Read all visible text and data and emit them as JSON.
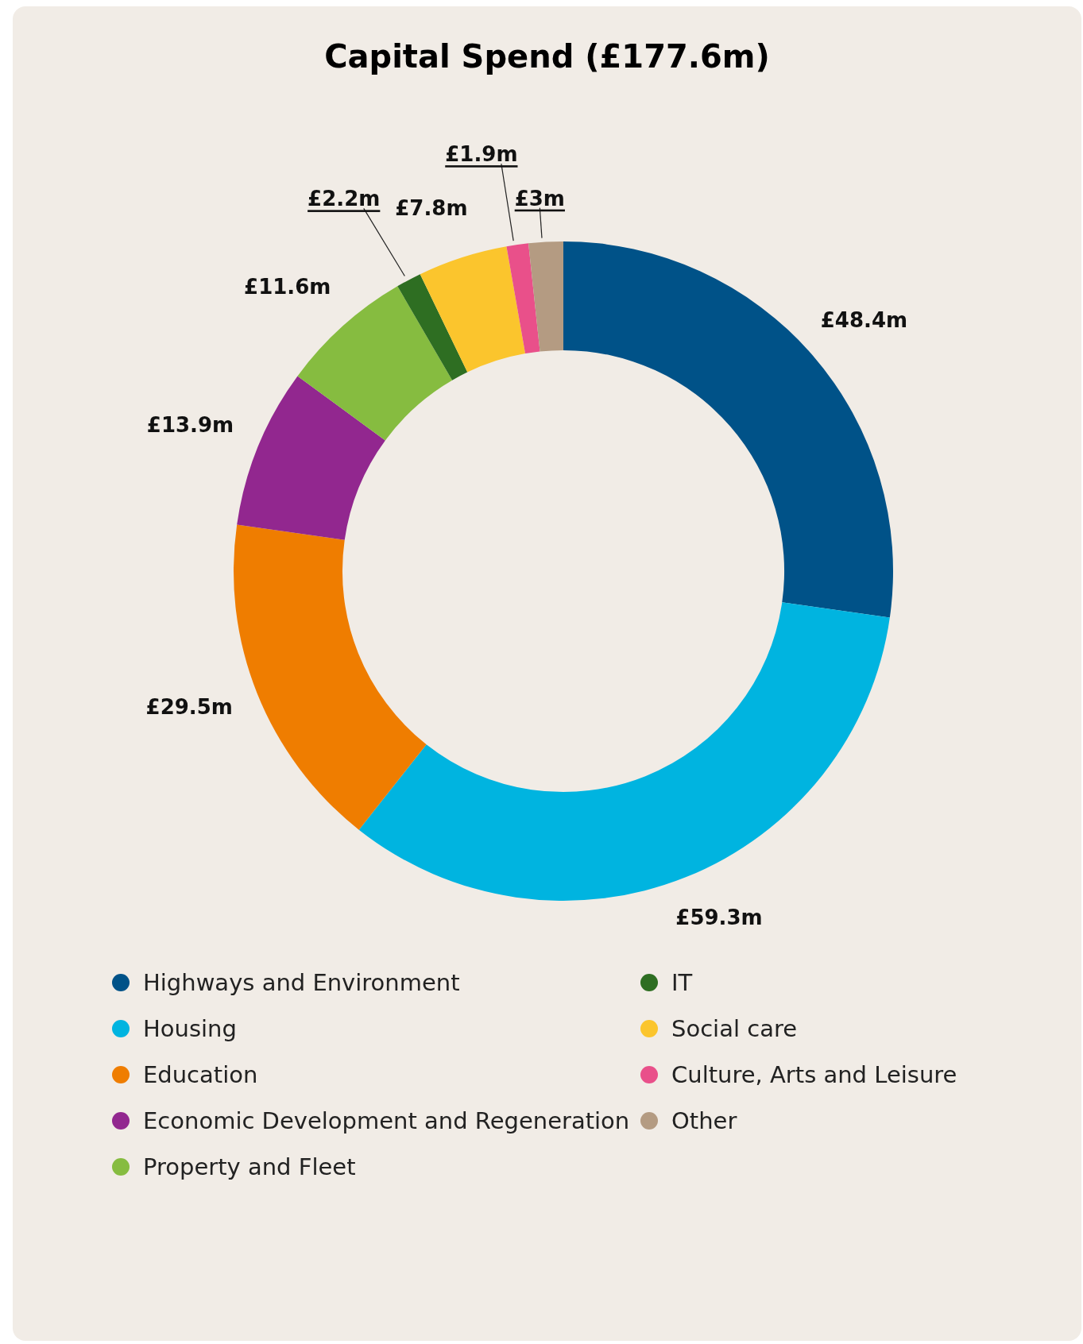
{
  "chart_data": {
    "type": "donut",
    "title": "Capital Spend (£177.6m)",
    "categories": [
      "Highways and Environment",
      "Housing",
      "Education",
      "Economic Development and Regeneration",
      "Property and Fleet",
      "IT",
      "Social care",
      "Culture, Arts and Leisure",
      "Other"
    ],
    "values": [
      48.4,
      59.3,
      29.5,
      13.9,
      11.6,
      2.2,
      7.8,
      1.9,
      3
    ],
    "colors": [
      "#005288",
      "#00b4e0",
      "#ef7d00",
      "#92278f",
      "#86bc40",
      "#2e6e22",
      "#fbc52d",
      "#e9508a",
      "#b49b82"
    ],
    "value_labels": [
      "£48.4m",
      "£59.3m",
      "£29.5m",
      "£13.9m",
      "£11.6m",
      "£2.2m",
      "£7.8m",
      "£1.9m",
      "£3m"
    ],
    "legend": "bottom"
  }
}
